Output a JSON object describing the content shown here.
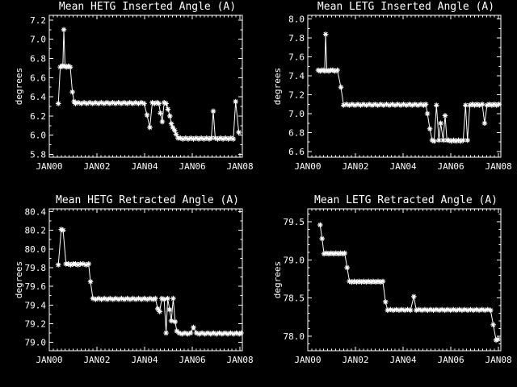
{
  "window": {
    "background": "#000000",
    "foreground": "#ffffff"
  },
  "x_axis": {
    "tick_labels": [
      "JAN00",
      "JAN02",
      "JAN04",
      "JAN06",
      "JAN08"
    ],
    "tick_years": [
      0,
      2,
      4,
      6,
      8
    ],
    "range_years": [
      0,
      8.1
    ],
    "minor_tick_step_years": 0.1667
  },
  "chart_data": [
    {
      "type": "line",
      "name": "hetg-inserted-angle",
      "title": "Mean HETG Inserted Angle (A)",
      "ylabel": "degrees",
      "marker": "asterisk",
      "line_color": "#ffffff",
      "legend": "none",
      "grid": false,
      "ylim": [
        5.77,
        7.25
      ],
      "yticks": [
        5.8,
        6.0,
        6.2,
        6.4,
        6.6,
        6.8,
        7.0,
        7.2
      ],
      "ytick_labels": [
        "5.8",
        "6.0",
        "6.2",
        "6.4",
        "6.6",
        "6.8",
        "7.0",
        "7.2"
      ],
      "y_minor_step": 0.1,
      "x_units": "years since JAN00",
      "points": [
        [
          0.38,
          6.33
        ],
        [
          0.46,
          6.71
        ],
        [
          0.52,
          6.72
        ],
        [
          0.57,
          6.72
        ],
        [
          0.61,
          7.1
        ],
        [
          0.66,
          6.72
        ],
        [
          0.72,
          6.71
        ],
        [
          0.8,
          6.72
        ],
        [
          0.88,
          6.71
        ],
        [
          0.97,
          6.45
        ],
        [
          1.04,
          6.35
        ],
        [
          1.1,
          6.33
        ],
        [
          1.22,
          6.34
        ],
        [
          1.34,
          6.33
        ],
        [
          1.46,
          6.34
        ],
        [
          1.58,
          6.33
        ],
        [
          1.7,
          6.34
        ],
        [
          1.82,
          6.33
        ],
        [
          1.94,
          6.34
        ],
        [
          2.06,
          6.33
        ],
        [
          2.18,
          6.34
        ],
        [
          2.3,
          6.33
        ],
        [
          2.42,
          6.34
        ],
        [
          2.54,
          6.33
        ],
        [
          2.66,
          6.34
        ],
        [
          2.78,
          6.33
        ],
        [
          2.9,
          6.34
        ],
        [
          3.02,
          6.33
        ],
        [
          3.14,
          6.34
        ],
        [
          3.26,
          6.33
        ],
        [
          3.38,
          6.34
        ],
        [
          3.5,
          6.33
        ],
        [
          3.62,
          6.34
        ],
        [
          3.74,
          6.33
        ],
        [
          3.86,
          6.34
        ],
        [
          3.98,
          6.33
        ],
        [
          4.1,
          6.21
        ],
        [
          4.22,
          6.08
        ],
        [
          4.32,
          6.34
        ],
        [
          4.42,
          6.33
        ],
        [
          4.52,
          6.34
        ],
        [
          4.6,
          6.33
        ],
        [
          4.66,
          6.23
        ],
        [
          4.74,
          6.14
        ],
        [
          4.82,
          6.34
        ],
        [
          4.9,
          6.33
        ],
        [
          4.98,
          6.27
        ],
        [
          5.06,
          6.2
        ],
        [
          5.12,
          6.12
        ],
        [
          5.18,
          6.08
        ],
        [
          5.26,
          6.05
        ],
        [
          5.32,
          6.01
        ],
        [
          5.4,
          5.97
        ],
        [
          5.5,
          5.97
        ],
        [
          5.61,
          5.96
        ],
        [
          5.72,
          5.97
        ],
        [
          5.83,
          5.96
        ],
        [
          5.94,
          5.97
        ],
        [
          6.05,
          5.96
        ],
        [
          6.16,
          5.97
        ],
        [
          6.27,
          5.96
        ],
        [
          6.38,
          5.97
        ],
        [
          6.49,
          5.96
        ],
        [
          6.6,
          5.97
        ],
        [
          6.71,
          5.96
        ],
        [
          6.8,
          5.97
        ],
        [
          6.88,
          6.25
        ],
        [
          6.96,
          5.97
        ],
        [
          7.07,
          5.96
        ],
        [
          7.18,
          5.97
        ],
        [
          7.29,
          5.96
        ],
        [
          7.4,
          5.97
        ],
        [
          7.51,
          5.96
        ],
        [
          7.62,
          5.97
        ],
        [
          7.72,
          5.96
        ],
        [
          7.82,
          6.35
        ],
        [
          7.95,
          6.03
        ]
      ]
    },
    {
      "type": "line",
      "name": "letg-inserted-angle",
      "title": "Mean LETG Inserted Angle (A)",
      "ylabel": "degrees",
      "marker": "asterisk",
      "line_color": "#ffffff",
      "legend": "none",
      "grid": false,
      "ylim": [
        6.54,
        8.04
      ],
      "yticks": [
        6.6,
        6.8,
        7.0,
        7.2,
        7.4,
        7.6,
        7.8,
        8.0
      ],
      "ytick_labels": [
        "6.6",
        "6.8",
        "7.0",
        "7.2",
        "7.4",
        "7.6",
        "7.8",
        "8.0"
      ],
      "y_minor_step": 0.1,
      "x_units": "years since JAN00",
      "points": [
        [
          0.44,
          7.46
        ],
        [
          0.52,
          7.45
        ],
        [
          0.58,
          7.46
        ],
        [
          0.65,
          7.46
        ],
        [
          0.71,
          7.45
        ],
        [
          0.75,
          7.84
        ],
        [
          0.8,
          7.46
        ],
        [
          0.88,
          7.45
        ],
        [
          0.96,
          7.46
        ],
        [
          1.05,
          7.46
        ],
        [
          1.14,
          7.45
        ],
        [
          1.24,
          7.46
        ],
        [
          1.39,
          7.28
        ],
        [
          1.5,
          7.09
        ],
        [
          1.62,
          7.1
        ],
        [
          1.74,
          7.09
        ],
        [
          1.86,
          7.1
        ],
        [
          1.98,
          7.09
        ],
        [
          2.1,
          7.1
        ],
        [
          2.22,
          7.09
        ],
        [
          2.34,
          7.1
        ],
        [
          2.46,
          7.09
        ],
        [
          2.58,
          7.1
        ],
        [
          2.7,
          7.09
        ],
        [
          2.82,
          7.1
        ],
        [
          2.94,
          7.09
        ],
        [
          3.06,
          7.1
        ],
        [
          3.18,
          7.09
        ],
        [
          3.3,
          7.1
        ],
        [
          3.42,
          7.09
        ],
        [
          3.54,
          7.1
        ],
        [
          3.66,
          7.09
        ],
        [
          3.78,
          7.1
        ],
        [
          3.9,
          7.09
        ],
        [
          4.02,
          7.1
        ],
        [
          4.14,
          7.09
        ],
        [
          4.26,
          7.1
        ],
        [
          4.38,
          7.09
        ],
        [
          4.5,
          7.1
        ],
        [
          4.62,
          7.09
        ],
        [
          4.74,
          7.1
        ],
        [
          4.86,
          7.09
        ],
        [
          4.95,
          7.1
        ],
        [
          5.02,
          7.0
        ],
        [
          5.12,
          6.84
        ],
        [
          5.22,
          6.72
        ],
        [
          5.3,
          6.71
        ],
        [
          5.4,
          7.09
        ],
        [
          5.5,
          6.72
        ],
        [
          5.58,
          6.9
        ],
        [
          5.68,
          6.72
        ],
        [
          5.76,
          6.98
        ],
        [
          5.84,
          6.72
        ],
        [
          5.92,
          6.72
        ],
        [
          6.02,
          6.71
        ],
        [
          6.12,
          6.72
        ],
        [
          6.22,
          6.71
        ],
        [
          6.32,
          6.72
        ],
        [
          6.42,
          6.71
        ],
        [
          6.52,
          6.72
        ],
        [
          6.62,
          7.09
        ],
        [
          6.7,
          6.72
        ],
        [
          6.8,
          7.09
        ],
        [
          6.9,
          7.1
        ],
        [
          7.0,
          7.09
        ],
        [
          7.1,
          7.1
        ],
        [
          7.2,
          7.09
        ],
        [
          7.32,
          7.1
        ],
        [
          7.42,
          6.9
        ],
        [
          7.52,
          7.09
        ],
        [
          7.62,
          7.1
        ],
        [
          7.72,
          7.09
        ],
        [
          7.82,
          7.1
        ],
        [
          7.92,
          7.09
        ],
        [
          8.02,
          7.1
        ]
      ]
    },
    {
      "type": "line",
      "name": "hetg-retracted-angle",
      "title": "Mean HETG Retracted Angle (A)",
      "ylabel": "degrees",
      "marker": "asterisk",
      "line_color": "#ffffff",
      "legend": "none",
      "grid": false,
      "ylim": [
        78.91,
        80.43
      ],
      "yticks": [
        79.0,
        79.2,
        79.4,
        79.6,
        79.8,
        80.0,
        80.2,
        80.4
      ],
      "ytick_labels": [
        "79.0",
        "79.2",
        "79.4",
        "79.6",
        "79.8",
        "80.0",
        "80.2",
        "80.4"
      ],
      "y_minor_step": 0.1,
      "x_units": "years since JAN00",
      "points": [
        [
          0.38,
          79.83
        ],
        [
          0.5,
          80.21
        ],
        [
          0.58,
          80.2
        ],
        [
          0.7,
          79.84
        ],
        [
          0.8,
          79.84
        ],
        [
          0.9,
          79.83
        ],
        [
          1.0,
          79.84
        ],
        [
          1.1,
          79.84
        ],
        [
          1.2,
          79.83
        ],
        [
          1.3,
          79.84
        ],
        [
          1.42,
          79.84
        ],
        [
          1.55,
          79.83
        ],
        [
          1.65,
          79.84
        ],
        [
          1.73,
          79.65
        ],
        [
          1.83,
          79.47
        ],
        [
          1.95,
          79.46
        ],
        [
          2.07,
          79.47
        ],
        [
          2.19,
          79.46
        ],
        [
          2.31,
          79.47
        ],
        [
          2.43,
          79.46
        ],
        [
          2.55,
          79.47
        ],
        [
          2.67,
          79.46
        ],
        [
          2.79,
          79.47
        ],
        [
          2.91,
          79.46
        ],
        [
          3.03,
          79.47
        ],
        [
          3.15,
          79.46
        ],
        [
          3.27,
          79.47
        ],
        [
          3.39,
          79.46
        ],
        [
          3.51,
          79.47
        ],
        [
          3.63,
          79.46
        ],
        [
          3.75,
          79.47
        ],
        [
          3.87,
          79.46
        ],
        [
          3.99,
          79.47
        ],
        [
          4.11,
          79.46
        ],
        [
          4.23,
          79.47
        ],
        [
          4.35,
          79.46
        ],
        [
          4.45,
          79.47
        ],
        [
          4.55,
          79.36
        ],
        [
          4.63,
          79.33
        ],
        [
          4.72,
          79.47
        ],
        [
          4.82,
          79.46
        ],
        [
          4.9,
          79.1
        ],
        [
          4.97,
          79.47
        ],
        [
          5.05,
          79.35
        ],
        [
          5.12,
          79.23
        ],
        [
          5.2,
          79.47
        ],
        [
          5.28,
          79.22
        ],
        [
          5.35,
          79.12
        ],
        [
          5.45,
          79.1
        ],
        [
          5.57,
          79.09
        ],
        [
          5.69,
          79.1
        ],
        [
          5.81,
          79.09
        ],
        [
          5.93,
          79.1
        ],
        [
          6.05,
          79.16
        ],
        [
          6.17,
          79.1
        ],
        [
          6.29,
          79.09
        ],
        [
          6.41,
          79.1
        ],
        [
          6.53,
          79.09
        ],
        [
          6.65,
          79.1
        ],
        [
          6.77,
          79.09
        ],
        [
          6.89,
          79.1
        ],
        [
          7.01,
          79.09
        ],
        [
          7.13,
          79.1
        ],
        [
          7.25,
          79.09
        ],
        [
          7.37,
          79.1
        ],
        [
          7.49,
          79.09
        ],
        [
          7.61,
          79.1
        ],
        [
          7.73,
          79.09
        ],
        [
          7.85,
          79.1
        ],
        [
          7.97,
          79.09
        ],
        [
          8.05,
          79.1
        ]
      ]
    },
    {
      "type": "line",
      "name": "letg-retracted-angle",
      "title": "Mean LETG Retracted Angle (A)",
      "ylabel": "degrees",
      "marker": "asterisk",
      "line_color": "#ffffff",
      "legend": "none",
      "grid": false,
      "ylim": [
        77.81,
        79.67
      ],
      "yticks": [
        78.0,
        78.5,
        79.0,
        79.5
      ],
      "ytick_labels": [
        "78.0",
        "78.5",
        "79.0",
        "79.5"
      ],
      "y_minor_step": 0.1,
      "x_units": "years since JAN00",
      "points": [
        [
          0.52,
          79.46
        ],
        [
          0.6,
          79.28
        ],
        [
          0.68,
          79.08
        ],
        [
          0.78,
          79.09
        ],
        [
          0.88,
          79.08
        ],
        [
          0.98,
          79.09
        ],
        [
          1.08,
          79.08
        ],
        [
          1.18,
          79.09
        ],
        [
          1.28,
          79.08
        ],
        [
          1.38,
          79.09
        ],
        [
          1.48,
          79.08
        ],
        [
          1.55,
          79.09
        ],
        [
          1.65,
          78.9
        ],
        [
          1.75,
          78.72
        ],
        [
          1.85,
          78.71
        ],
        [
          1.95,
          78.72
        ],
        [
          2.05,
          78.71
        ],
        [
          2.15,
          78.72
        ],
        [
          2.25,
          78.71
        ],
        [
          2.35,
          78.72
        ],
        [
          2.45,
          78.71
        ],
        [
          2.55,
          78.72
        ],
        [
          2.65,
          78.71
        ],
        [
          2.75,
          78.72
        ],
        [
          2.85,
          78.71
        ],
        [
          2.95,
          78.72
        ],
        [
          3.05,
          78.71
        ],
        [
          3.15,
          78.72
        ],
        [
          3.26,
          78.45
        ],
        [
          3.35,
          78.34
        ],
        [
          3.47,
          78.35
        ],
        [
          3.59,
          78.34
        ],
        [
          3.71,
          78.35
        ],
        [
          3.83,
          78.34
        ],
        [
          3.95,
          78.35
        ],
        [
          4.07,
          78.34
        ],
        [
          4.19,
          78.35
        ],
        [
          4.31,
          78.34
        ],
        [
          4.45,
          78.52
        ],
        [
          4.55,
          78.34
        ],
        [
          4.67,
          78.35
        ],
        [
          4.79,
          78.34
        ],
        [
          4.91,
          78.35
        ],
        [
          5.03,
          78.34
        ],
        [
          5.15,
          78.35
        ],
        [
          5.27,
          78.34
        ],
        [
          5.39,
          78.35
        ],
        [
          5.51,
          78.34
        ],
        [
          5.63,
          78.35
        ],
        [
          5.75,
          78.34
        ],
        [
          5.87,
          78.35
        ],
        [
          5.99,
          78.34
        ],
        [
          6.11,
          78.35
        ],
        [
          6.23,
          78.34
        ],
        [
          6.35,
          78.35
        ],
        [
          6.47,
          78.34
        ],
        [
          6.59,
          78.35
        ],
        [
          6.71,
          78.34
        ],
        [
          6.83,
          78.35
        ],
        [
          6.95,
          78.34
        ],
        [
          7.07,
          78.35
        ],
        [
          7.19,
          78.34
        ],
        [
          7.31,
          78.35
        ],
        [
          7.43,
          78.34
        ],
        [
          7.55,
          78.35
        ],
        [
          7.67,
          78.34
        ],
        [
          7.78,
          78.15
        ],
        [
          7.9,
          77.95
        ],
        [
          7.98,
          77.96
        ]
      ]
    }
  ]
}
